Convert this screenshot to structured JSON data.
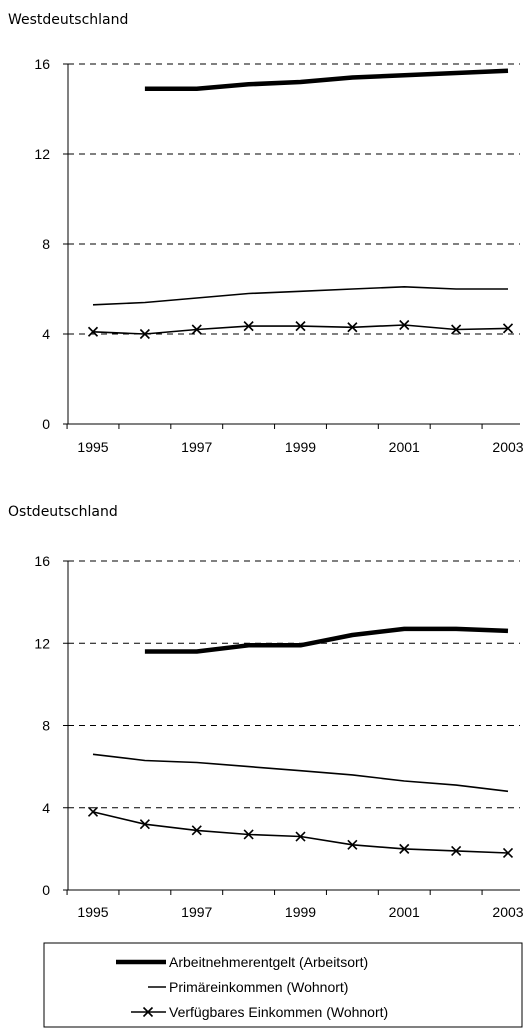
{
  "chart_data": [
    {
      "type": "line",
      "title": "Westdeutschland",
      "x": [
        1995,
        1996,
        1997,
        1998,
        1999,
        2000,
        2001,
        2002,
        2003
      ],
      "x_tick_labels": [
        "1995",
        "1997",
        "1999",
        "2001",
        "2003"
      ],
      "ylim": [
        0,
        16
      ],
      "y_ticks": [
        0,
        4,
        8,
        12,
        16
      ],
      "grid": "dashed-horizontal",
      "series": [
        {
          "name": "Arbeitnehmerentgelt (Arbeitsort)",
          "values": [
            null,
            14.9,
            14.9,
            15.1,
            15.2,
            15.4,
            15.5,
            15.6,
            15.7
          ]
        },
        {
          "name": "Primäreinkommen (Wohnort)",
          "values": [
            5.3,
            5.4,
            5.6,
            5.8,
            5.9,
            6.0,
            6.1,
            6.0,
            6.0
          ]
        },
        {
          "name": "Verfügbares Einkommen (Wohnort)",
          "values": [
            4.1,
            4.0,
            4.2,
            4.35,
            4.35,
            4.3,
            4.4,
            4.2,
            4.25
          ]
        }
      ]
    },
    {
      "type": "line",
      "title": "Ostdeutschland",
      "x": [
        1995,
        1996,
        1997,
        1998,
        1999,
        2000,
        2001,
        2002,
        2003
      ],
      "x_tick_labels": [
        "1995",
        "1997",
        "1999",
        "2001",
        "2003"
      ],
      "ylim": [
        0,
        16
      ],
      "y_ticks": [
        0,
        4,
        8,
        12,
        16
      ],
      "grid": "dashed-horizontal",
      "series": [
        {
          "name": "Arbeitnehmerentgelt (Arbeitsort)",
          "values": [
            null,
            11.6,
            11.6,
            11.9,
            11.9,
            12.4,
            12.7,
            12.7,
            12.6
          ]
        },
        {
          "name": "Primäreinkommen (Wohnort)",
          "values": [
            6.6,
            6.3,
            6.2,
            6.0,
            5.8,
            5.6,
            5.3,
            5.1,
            4.8
          ]
        },
        {
          "name": "Verfügbares Einkommen (Wohnort)",
          "values": [
            3.8,
            3.2,
            2.9,
            2.7,
            2.6,
            2.2,
            2.0,
            1.9,
            1.8
          ]
        }
      ]
    }
  ],
  "legend": {
    "placement": "bottom",
    "items": [
      {
        "label": "Arbeitnehmerentgelt (Arbeitsort)",
        "style": "thick-line"
      },
      {
        "label": "Primäreinkommen (Wohnort)",
        "style": "thin-line"
      },
      {
        "label": "Verfügbares Einkommen (Wohnort)",
        "style": "cross-markers"
      }
    ]
  },
  "colors": {
    "line": "#000000",
    "grid": "#000000",
    "background": "#ffffff"
  }
}
